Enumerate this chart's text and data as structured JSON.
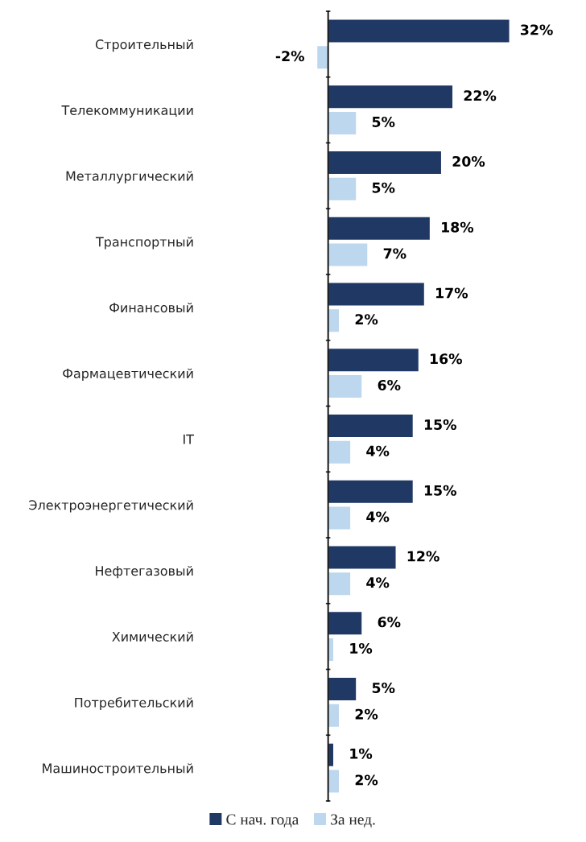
{
  "chart_data": {
    "type": "bar",
    "orientation": "horizontal",
    "categories": [
      "Строительный",
      "Телекоммуникации",
      "Металлургический",
      "Транспортный",
      "Финансовый",
      "Фармацевтический",
      "IT",
      "Электроэнергетический",
      "Нефтегазовый",
      "Химический",
      "Потребительский",
      "Машиностроительный"
    ],
    "series": [
      {
        "name": "С нач. года",
        "color": "#203864",
        "values": [
          32,
          22,
          20,
          18,
          17,
          16,
          15,
          15,
          12,
          6,
          5,
          1
        ],
        "value_labels": [
          "32%",
          "22%",
          "20%",
          "18%",
          "17%",
          "16%",
          "15%",
          "15%",
          "12%",
          "6%",
          "5%",
          "1%"
        ]
      },
      {
        "name": "За нед.",
        "color": "#bdd7ee",
        "values": [
          -2,
          5,
          5,
          7,
          2,
          6,
          4,
          4,
          4,
          1,
          2,
          2
        ],
        "value_labels": [
          "-2%",
          "5%",
          "5%",
          "7%",
          "2%",
          "6%",
          "4%",
          "4%",
          "4%",
          "1%",
          "2%",
          "2%"
        ]
      }
    ],
    "legend": "bottom",
    "grid": false
  }
}
